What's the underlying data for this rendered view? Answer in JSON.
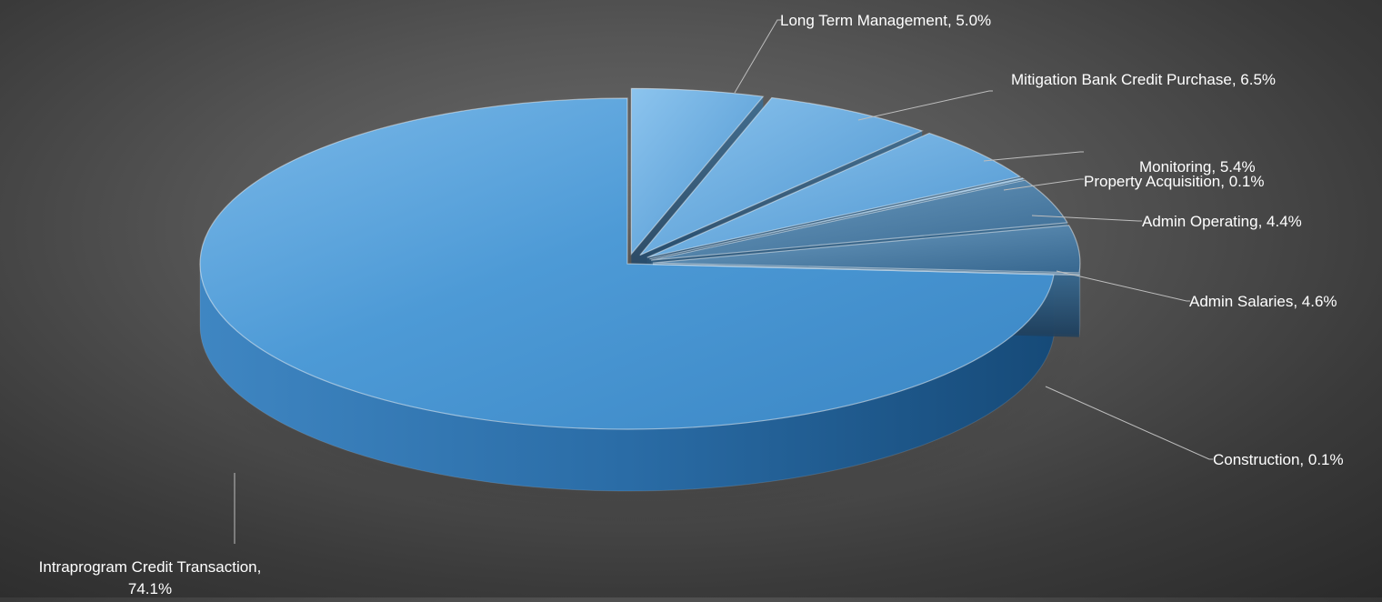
{
  "chart_data": {
    "type": "pie",
    "style": "3d-exploded",
    "title": "",
    "slices": [
      {
        "label": "Intraprogram Credit Transaction",
        "label_line1": "Intraprogram Credit Transaction,",
        "label_line2": "74.1%",
        "value": 74.1,
        "value_text": "74.1%"
      },
      {
        "label": "Long Term Management",
        "value": 5.0,
        "value_text": "5.0%"
      },
      {
        "label": "Mitigation Bank Credit Purchase",
        "value": 6.5,
        "value_text": "6.5%"
      },
      {
        "label": "Monitoring",
        "value": 5.4,
        "value_text": "5.4%"
      },
      {
        "label": "Property Acquisition",
        "value": 0.1,
        "value_text": "0.1%"
      },
      {
        "label": "Admin Operating",
        "value": 4.4,
        "value_text": "4.4%"
      },
      {
        "label": "Admin Salaries",
        "value": 4.6,
        "value_text": "4.6%"
      },
      {
        "label": "Construction",
        "value": 0.1,
        "value_text": "0.1%"
      }
    ],
    "legend": "none",
    "data_labels": "outside-with-leader-lines",
    "colors": {
      "background": "#4a4a4a",
      "main_slice_top": "#4d9ad6",
      "main_slice_side": "#1f5f96",
      "small_slice_top": "#5aa6e2",
      "small_slice_side": "#28506f",
      "label_text": "#ffffff",
      "leader_line": "#bdbdbd"
    }
  }
}
